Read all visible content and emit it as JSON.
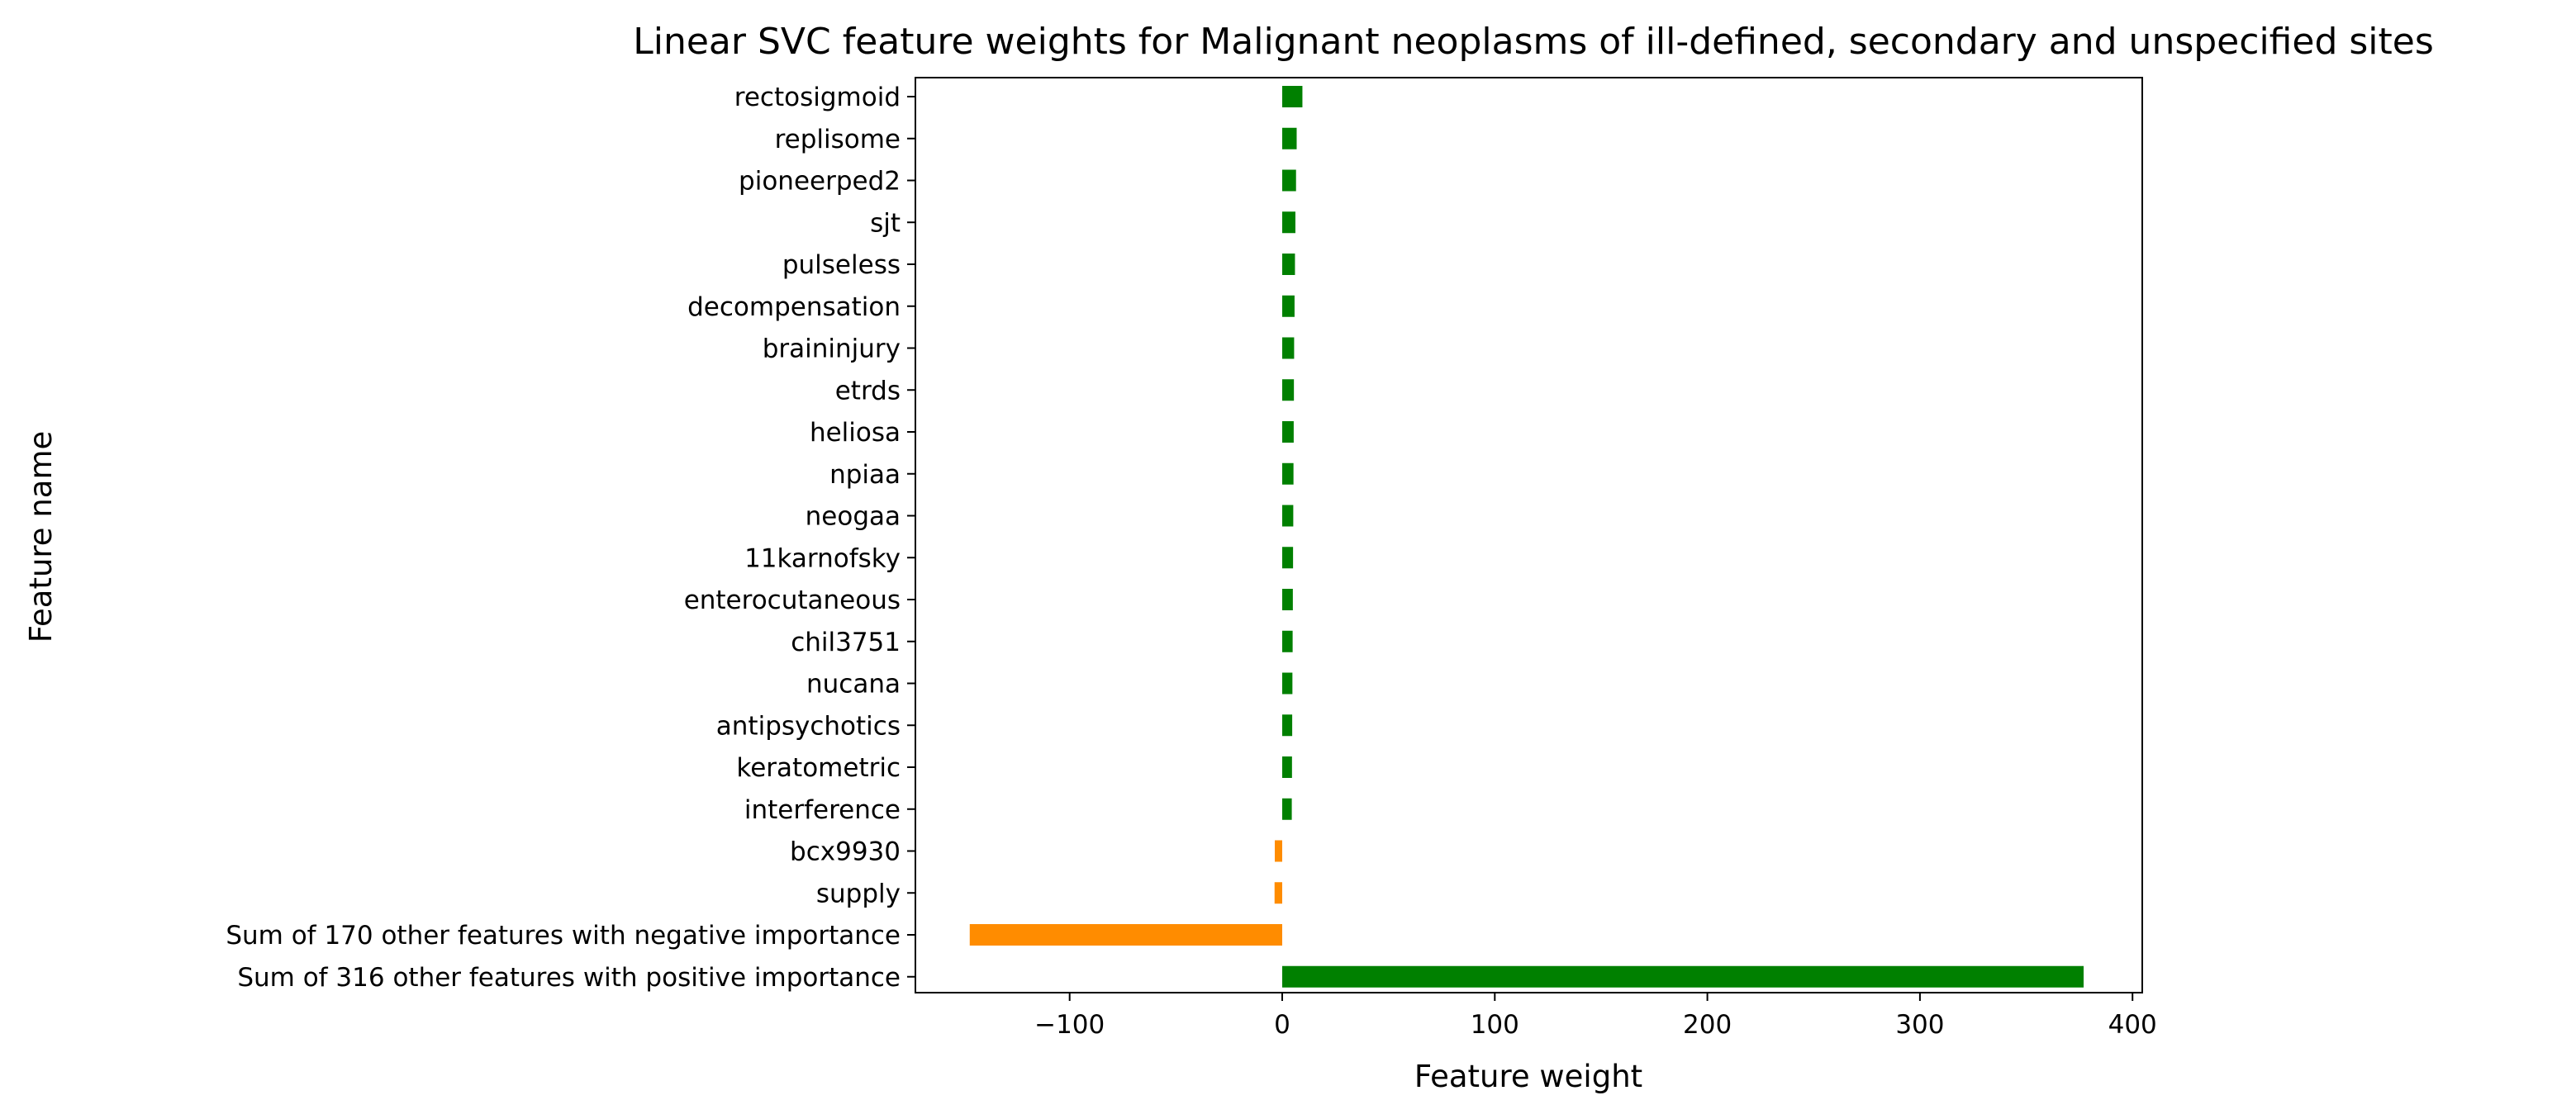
{
  "chart_data": {
    "type": "bar",
    "orientation": "horizontal",
    "title": "Linear SVC feature weights for Malignant neoplasms of ill-defined, secondary and unspecified sites",
    "xlabel": "Feature weight",
    "ylabel": "Feature name",
    "xlim": [
      -175,
      405
    ],
    "xticks": [
      -100,
      0,
      100,
      200,
      300,
      400
    ],
    "xtick_labels": [
      "−100",
      "0",
      "100",
      "200",
      "300",
      "400"
    ],
    "grid": false,
    "legend": "none",
    "colors": {
      "positive": "#008000",
      "negative": "#ff8c00"
    },
    "categories": [
      "rectosigmoid",
      "replisome",
      "pioneerped2",
      "sjt",
      "pulseless",
      "decompensation",
      "braininjury",
      "etrds",
      "heliosa",
      "npiaa",
      "neogaa",
      "11karnofsky",
      "enterocutaneous",
      "chil3751",
      "nucana",
      "antipsychotics",
      "keratometric",
      "interference",
      "bcx9930",
      "supply",
      "Sum of 170 other features with negative importance",
      "Sum of 316 other features with positive importance"
    ],
    "values": [
      9.5,
      6.8,
      6.5,
      6.2,
      6.0,
      5.8,
      5.6,
      5.5,
      5.4,
      5.3,
      5.2,
      5.1,
      5.0,
      4.9,
      4.8,
      4.7,
      4.6,
      4.5,
      -3.5,
      -3.6,
      -147,
      377
    ]
  }
}
